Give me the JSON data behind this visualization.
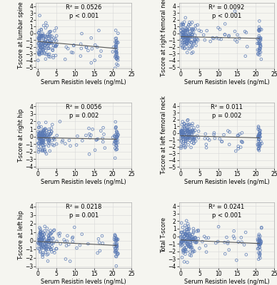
{
  "panels": [
    {
      "ylabel": "T-score at lumbar spine",
      "r2": "R² = 0.0526",
      "p": "p < 0.001",
      "slope": -0.05,
      "intercept": -1.2,
      "xlim": [
        -0.5,
        25
      ],
      "ylim": [
        -5.2,
        4.5
      ],
      "yticks": [
        -5,
        -4,
        -3,
        -2,
        -1,
        0,
        1,
        2,
        3,
        4
      ],
      "xticks": [
        0,
        5,
        10,
        15,
        20,
        25
      ],
      "noise": 1.3,
      "n": 200
    },
    {
      "ylabel": "T-score at right femoral neck",
      "r2": "R² = 0.0092",
      "p": "p < 0.001",
      "slope": -0.012,
      "intercept": -0.5,
      "xlim": [
        -0.5,
        25
      ],
      "ylim": [
        -5.2,
        4.5
      ],
      "yticks": [
        -5,
        -4,
        -3,
        -2,
        -1,
        0,
        1,
        2,
        3,
        4
      ],
      "xticks": [
        0,
        5,
        10,
        15,
        20,
        25
      ],
      "noise": 1.1,
      "n": 200
    },
    {
      "ylabel": "T-score at right hip",
      "r2": "R² = 0.0056",
      "p": "p = 0.002",
      "slope": -0.01,
      "intercept": -0.15,
      "xlim": [
        -0.5,
        25
      ],
      "ylim": [
        -4.2,
        4.5
      ],
      "yticks": [
        -4,
        -3,
        -2,
        -1,
        0,
        1,
        2,
        3,
        4
      ],
      "xticks": [
        0,
        5,
        10,
        15,
        20,
        25
      ],
      "noise": 0.9,
      "n": 200
    },
    {
      "ylabel": "T-score at left femoral neck",
      "r2": "R² = 0.011",
      "p": "p = 0.002",
      "slope": -0.015,
      "intercept": -0.4,
      "xlim": [
        -0.5,
        25
      ],
      "ylim": [
        -5.2,
        4.5
      ],
      "yticks": [
        -5,
        -4,
        -3,
        -2,
        -1,
        0,
        1,
        2,
        3,
        4
      ],
      "xticks": [
        0,
        5,
        10,
        15,
        20,
        25
      ],
      "noise": 1.0,
      "n": 200
    },
    {
      "ylabel": "T-score at left hip",
      "r2": "R² = 0.0218",
      "p": "p = 0.001",
      "slope": -0.022,
      "intercept": -0.1,
      "xlim": [
        -0.5,
        25
      ],
      "ylim": [
        -3.2,
        4.5
      ],
      "yticks": [
        -3,
        -2,
        -1,
        0,
        1,
        2,
        3,
        4
      ],
      "xticks": [
        0,
        5,
        10,
        15,
        20,
        25
      ],
      "noise": 0.85,
      "n": 200
    },
    {
      "ylabel": "Total T-score",
      "r2": "R² = 0.0241",
      "p": "p < 0.001",
      "slope": -0.022,
      "intercept": -0.5,
      "xlim": [
        -0.5,
        25
      ],
      "ylim": [
        -4.2,
        4.5
      ],
      "yticks": [
        -4,
        -3,
        -2,
        -1,
        0,
        1,
        2,
        3,
        4
      ],
      "xticks": [
        0,
        5,
        10,
        15,
        20,
        25
      ],
      "noise": 1.0,
      "n": 200
    }
  ],
  "xlabel": "Serum Resistin levels (ng/mL)",
  "dot_color": "#5a7ab5",
  "dot_edge_color": "#3a5a95",
  "line_color": "#555555",
  "background_color": "#f5f5f0",
  "grid_color": "#d8d8d8",
  "annotation_fontsize": 6.0,
  "axis_label_fontsize": 5.8,
  "tick_fontsize": 5.5
}
